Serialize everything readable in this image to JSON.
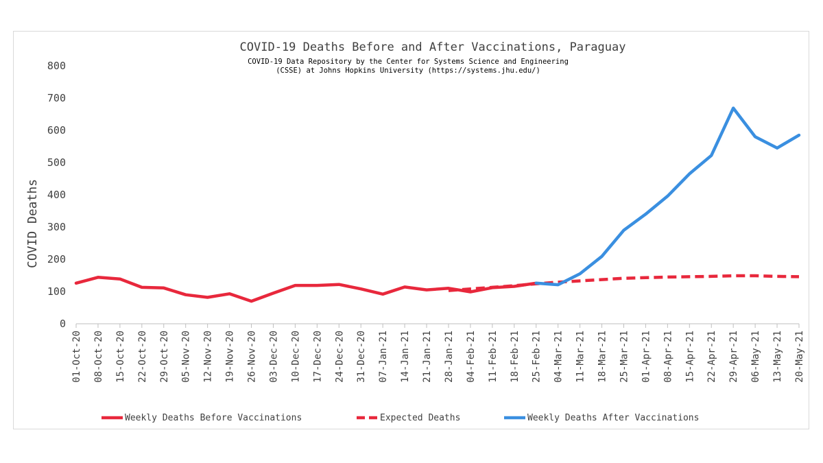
{
  "chart_data": {
    "type": "line",
    "title": "COVID-19 Deaths Before and After Vaccinations, Paraguay",
    "subtitle_line1": "COVID-19 Data Repository by the Center for Systems Science and Engineering",
    "subtitle_line2": "(CSSE) at Johns Hopkins University (https://systems.jhu.edu/)",
    "xlabel": "",
    "ylabel": "COVID Deaths",
    "ylim": [
      0,
      800
    ],
    "yticks": [
      "0",
      "100",
      "200",
      "300",
      "400",
      "500",
      "600",
      "700",
      "800"
    ],
    "categories": [
      "01-Oct-20",
      "08-Oct-20",
      "15-Oct-20",
      "22-Oct-20",
      "29-Oct-20",
      "05-Nov-20",
      "12-Nov-20",
      "19-Nov-20",
      "26-Nov-20",
      "03-Dec-20",
      "10-Dec-20",
      "17-Dec-20",
      "24-Dec-20",
      "31-Dec-20",
      "07-Jan-21",
      "14-Jan-21",
      "21-Jan-21",
      "28-Jan-21",
      "04-Feb-21",
      "11-Feb-21",
      "18-Feb-21",
      "25-Feb-21",
      "04-Mar-21",
      "11-Mar-21",
      "18-Mar-21",
      "25-Mar-21",
      "01-Apr-21",
      "08-Apr-21",
      "15-Apr-21",
      "22-Apr-21",
      "29-Apr-21",
      "06-May-21",
      "13-May-21",
      "20-May-21"
    ],
    "grid": false,
    "legend_position": "bottom",
    "series": [
      {
        "name": "Weekly Deaths Before Vaccinations",
        "color": "#e8283c",
        "dash": "solid",
        "values": [
          126,
          144,
          139,
          113,
          111,
          90,
          82,
          93,
          70,
          95,
          119,
          119,
          122,
          108,
          92,
          114,
          105,
          110,
          99,
          112,
          116,
          126,
          null,
          null,
          null,
          null,
          null,
          null,
          null,
          null,
          null,
          null,
          null,
          null
        ]
      },
      {
        "name": "Expected Deaths",
        "color": "#e8283c",
        "dash": "dashed",
        "values": [
          null,
          null,
          null,
          null,
          null,
          null,
          null,
          null,
          null,
          null,
          null,
          null,
          null,
          null,
          null,
          null,
          null,
          103,
          108,
          113,
          118,
          124,
          129,
          133,
          137,
          141,
          143,
          145,
          146,
          147,
          149,
          149,
          147,
          146
        ]
      },
      {
        "name": "Weekly Deaths After Vaccinations",
        "color": "#3a8fe0",
        "dash": "solid",
        "values": [
          null,
          null,
          null,
          null,
          null,
          null,
          null,
          null,
          null,
          null,
          null,
          null,
          null,
          null,
          null,
          null,
          null,
          null,
          null,
          null,
          null,
          126,
          121,
          155,
          209,
          290,
          340,
          396,
          465,
          522,
          669,
          580,
          545,
          585
        ]
      }
    ]
  }
}
